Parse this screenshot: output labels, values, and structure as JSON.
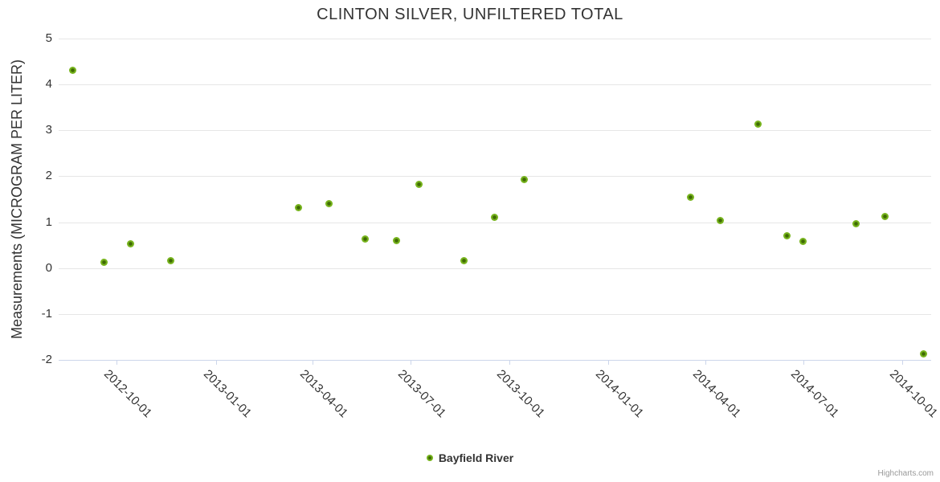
{
  "chart_data": {
    "type": "scatter",
    "title": "CLINTON SILVER, UNFILTERED TOTAL",
    "ylabel": "Measurements (MICROGRAM PER LITER)",
    "xlabel": "",
    "ylim": [
      -2,
      5
    ],
    "yticks": [
      5,
      4,
      3,
      2,
      1,
      0,
      -1,
      -2
    ],
    "xlim": [
      "2012-08-08",
      "2014-10-28"
    ],
    "xticks": [
      "2012-10-01",
      "2013-01-01",
      "2013-04-01",
      "2013-07-01",
      "2013-10-01",
      "2014-01-01",
      "2014-04-01",
      "2014-07-01",
      "2014-10-01"
    ],
    "grid": true,
    "legend_position": "bottom-center",
    "series": [
      {
        "name": "Bayfield River",
        "marker_color": "#77b41d",
        "marker_center_color": "#3f6a04",
        "points": [
          {
            "date": "2012-08-21",
            "value": 4.31
          },
          {
            "date": "2012-09-19",
            "value": 0.13
          },
          {
            "date": "2012-10-14",
            "value": 0.53
          },
          {
            "date": "2012-11-20",
            "value": 0.17
          },
          {
            "date": "2013-03-19",
            "value": 1.32
          },
          {
            "date": "2013-04-16",
            "value": 1.4
          },
          {
            "date": "2013-05-20",
            "value": 0.63
          },
          {
            "date": "2013-06-18",
            "value": 0.6
          },
          {
            "date": "2013-07-09",
            "value": 1.83
          },
          {
            "date": "2013-08-20",
            "value": 0.17
          },
          {
            "date": "2013-09-17",
            "value": 1.1
          },
          {
            "date": "2013-10-15",
            "value": 1.93
          },
          {
            "date": "2014-03-18",
            "value": 1.54
          },
          {
            "date": "2014-04-15",
            "value": 1.03
          },
          {
            "date": "2014-05-20",
            "value": 3.14
          },
          {
            "date": "2014-06-16",
            "value": 0.71
          },
          {
            "date": "2014-07-01",
            "value": 0.58
          },
          {
            "date": "2014-08-19",
            "value": 0.96
          },
          {
            "date": "2014-09-15",
            "value": 1.12
          },
          {
            "date": "2014-10-21",
            "value": -1.86
          }
        ]
      }
    ]
  },
  "colors": {
    "background": "#ffffff",
    "title_text": "#333333",
    "axis_text": "#333333",
    "gridline": "#e6e6e6",
    "axis_line": "#ccd6eb",
    "credits_text": "#999999"
  },
  "credits": {
    "label": "Highcharts.com"
  }
}
